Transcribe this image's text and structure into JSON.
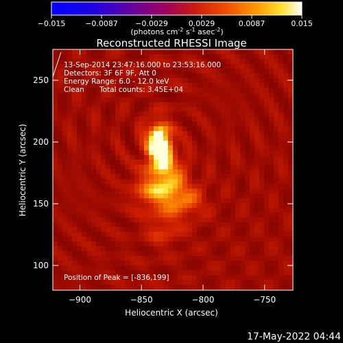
{
  "colorbar": {
    "ticks": [
      "-0.015",
      "-0.0087",
      "-0.0029",
      "0.0029",
      "0.0087",
      "0.015"
    ],
    "units_main": "(photons cm",
    "units_exp1": "-2",
    "units_mid": " s",
    "units_exp2": "-1",
    "units_tail": " asec",
    "units_exp3": "-2",
    "units_close": ")",
    "min": -0.015,
    "max": 0.015
  },
  "info": {
    "time_range": "13-Sep-2014 23:47:16.000 to 23:53:16.000",
    "detectors": "Detectors: 3F 6F 9F, Att 0",
    "energy": "Energy Range: 6.0 - 12.0 keV",
    "clean": "Clean",
    "counts": "Total counts: 3.45E+04",
    "peak": "Position of Peak = [-836,199]"
  },
  "timestamp": "17-May-2022 04:44",
  "chart_data": {
    "type": "heatmap",
    "title": "Reconstructed RHESSI Image",
    "xlabel": "Heliocentric X (arcsec)",
    "ylabel": "Heliocentric Y (arcsec)",
    "xlim": [
      -922,
      -727
    ],
    "ylim": [
      80,
      275
    ],
    "xticks": [
      -900,
      -850,
      -800,
      -750
    ],
    "yticks": [
      100,
      150,
      200,
      250
    ],
    "xtick_labels": [
      "−900",
      "−850",
      "−800",
      "−750"
    ],
    "ytick_labels": [
      "100",
      "150",
      "200",
      "250"
    ],
    "peak": [
      -836,
      199
    ],
    "colormap": "red-temperature",
    "sources": [
      {
        "x": -836,
        "y": 199,
        "amp": 1.0
      },
      {
        "x": -830,
        "y": 178,
        "amp": 0.45
      },
      {
        "x": -828,
        "y": 158,
        "amp": 0.4
      },
      {
        "x": -845,
        "y": 160,
        "amp": 0.3
      },
      {
        "x": -812,
        "y": 152,
        "amp": 0.28
      },
      {
        "x": -832,
        "y": 130,
        "amp": 0.22
      }
    ]
  }
}
